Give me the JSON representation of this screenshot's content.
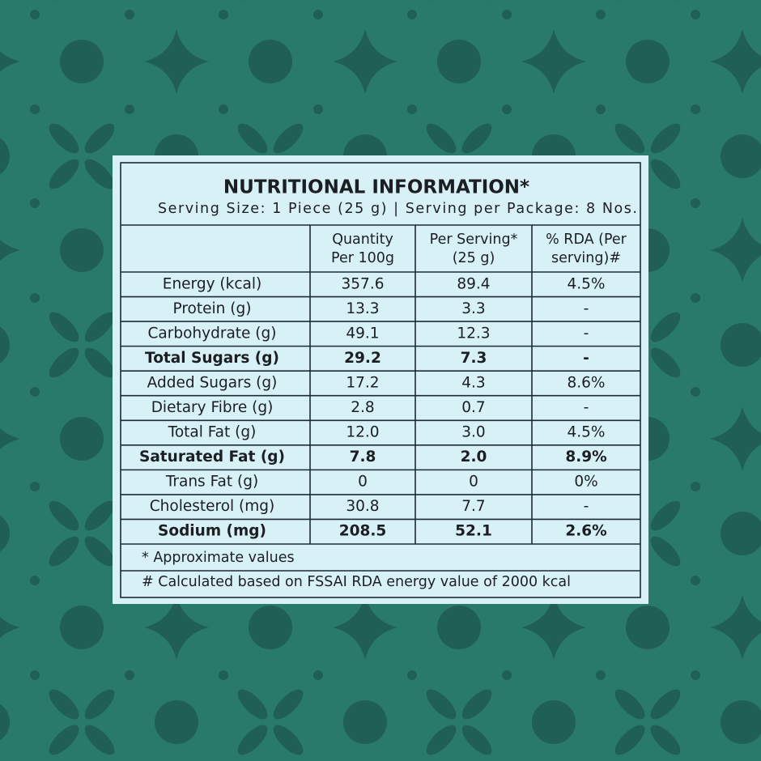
{
  "title": "NUTRITIONAL INFORMATION*",
  "subtitle": "Serving Size: 1 Piece (25 g) | Serving per Package: 8 Nos.",
  "table": {
    "header": [
      "Quantity Per 100g",
      "Per Serving* (25 g)",
      "% RDA (Per serving)#"
    ],
    "header_lines": [
      [
        "Quantity",
        "Per 100g"
      ],
      [
        "Per Serving*",
        "(25 g)"
      ],
      [
        "% RDA (Per",
        "serving)#"
      ]
    ],
    "rows": [
      {
        "cells": [
          "Energy (kcal)",
          "357.6",
          "89.4",
          "4.5%"
        ],
        "bold": false
      },
      {
        "cells": [
          "Protein (g)",
          "13.3",
          "3.3",
          "-"
        ],
        "bold": false
      },
      {
        "cells": [
          "Carbohydrate (g)",
          "49.1",
          "12.3",
          "-"
        ],
        "bold": false
      },
      {
        "cells": [
          "Total Sugars (g)",
          "29.2",
          "7.3",
          "-"
        ],
        "bold": true
      },
      {
        "cells": [
          "Added Sugars (g)",
          "17.2",
          "4.3",
          "8.6%"
        ],
        "bold": false
      },
      {
        "cells": [
          "Dietary Fibre (g)",
          "2.8",
          "0.7",
          "-"
        ],
        "bold": false
      },
      {
        "cells": [
          "Total Fat (g)",
          "12.0",
          "3.0",
          "4.5%"
        ],
        "bold": false
      },
      {
        "cells": [
          "Saturated Fat (g)",
          "7.8",
          "2.0",
          "8.9%"
        ],
        "bold": true
      },
      {
        "cells": [
          "Trans Fat (g)",
          "0",
          "0",
          "0%"
        ],
        "bold": false
      },
      {
        "cells": [
          "Cholesterol (mg)",
          "30.8",
          "7.7",
          "-"
        ],
        "bold": false
      },
      {
        "cells": [
          "Sodium (mg)",
          "208.5",
          "52.1",
          "2.6%"
        ],
        "bold": true
      }
    ]
  },
  "footnotes": [
    "* Approximate values",
    "# Calculated based on FSSAI RDA energy value of 2000 kcal"
  ]
}
